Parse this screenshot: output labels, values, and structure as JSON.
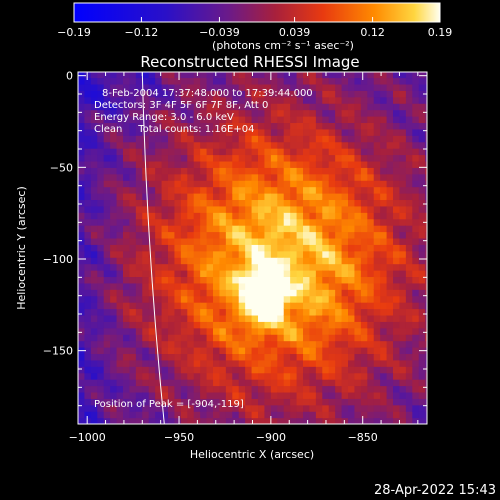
{
  "chart_data": {
    "type": "heatmap",
    "title": "Reconstructed RHESSI Image",
    "xlabel": "Heliocentric X (arcsec)",
    "ylabel": "Heliocentric Y (arcsec)",
    "xlim": [
      -1005,
      -815
    ],
    "ylim": [
      -190,
      2
    ],
    "xticks": [
      -1000,
      -950,
      -900,
      -850
    ],
    "yticks": [
      0,
      -50,
      -100,
      -150
    ],
    "xtick_labels": [
      "−1000",
      "−950",
      "−900",
      "−850"
    ],
    "ytick_labels": [
      "0",
      "−50",
      "−100",
      "−150"
    ],
    "colorbar": {
      "min": -0.19,
      "max": 0.19,
      "ticks": [
        -0.19,
        -0.12,
        -0.039,
        0.039,
        0.12,
        0.19
      ],
      "tick_labels": [
        "−0.19",
        "−0.12",
        "−0.039",
        "0.039",
        "0.12",
        "0.19"
      ],
      "units_label": "(photons cm⁻² s⁻¹ asec⁻²)"
    },
    "annotations": {
      "time_range": "8-Feb-2004 17:37:48.000 to 17:39:44.000",
      "detectors": "Detectors: 3F 4F 5F 6F 7F 8F, Att 0",
      "energy": "Energy Range: 3.0 - 6.0 keV",
      "clean": "Clean     Total counts: 1.16E+04",
      "peak": "Position of Peak = [-904,-119]"
    },
    "peak": {
      "x": -904,
      "y": -119
    },
    "limb_x_at_y0": -970,
    "limb_x_at_ybottom": -958,
    "timestamp": "28-Apr-2022 15:43",
    "colors": {
      "background": "#000000",
      "cmap": [
        "#0000ff",
        "#5020b0",
        "#6a1a8a",
        "#b8203a",
        "#ee4008",
        "#ff9a00",
        "#ffff80",
        "#ffffff"
      ]
    }
  }
}
